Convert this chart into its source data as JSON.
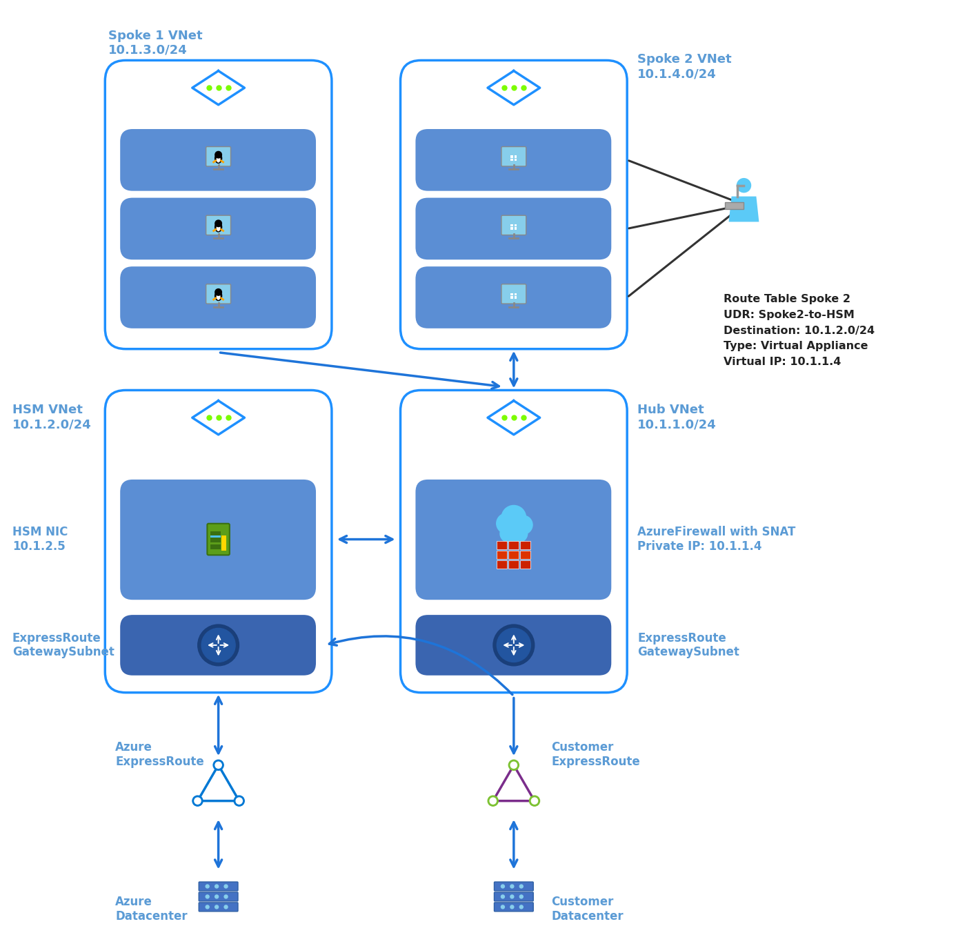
{
  "bg_color": "#ffffff",
  "blue_border": "#1E90FF",
  "light_blue_text": "#5B9BD5",
  "vnet_fill": "#ffffff",
  "slot_fill": "#5B8ED4",
  "slot_dark": "#3A65B0",
  "arrow_blue": "#1E74D9",
  "spoke1_label": "Spoke 1 VNet\n10.1.3.0/24",
  "spoke2_label": "Spoke 2 VNet\n10.1.4.0/24",
  "hsm_label": "HSM VNet\n10.1.2.0/24",
  "hub_label": "Hub VNet\n10.1.1.0/24",
  "hsm_nic_label": "HSM NIC\n10.1.2.5",
  "er_gw_label": "ExpressRoute\nGatewaySubnet",
  "azure_fw_label": "AzureFirewall with SNAT\nPrivate IP: 10.1.1.4",
  "hub_er_label": "ExpressRoute\nGatewaySubnet",
  "azure_er_label": "Azure\nExpressRoute",
  "azure_dc_label": "Azure\nDatacenter",
  "customer_er_label": "Customer\nExpressRoute",
  "customer_dc_label": "Customer\nDatacenter",
  "route_table_text": "Route Table Spoke 2\nUDR: Spoke2-to-HSM\nDestination: 10.1.2.0/24\nType: Virtual Appliance\nVirtual IP: 10.1.1.4"
}
